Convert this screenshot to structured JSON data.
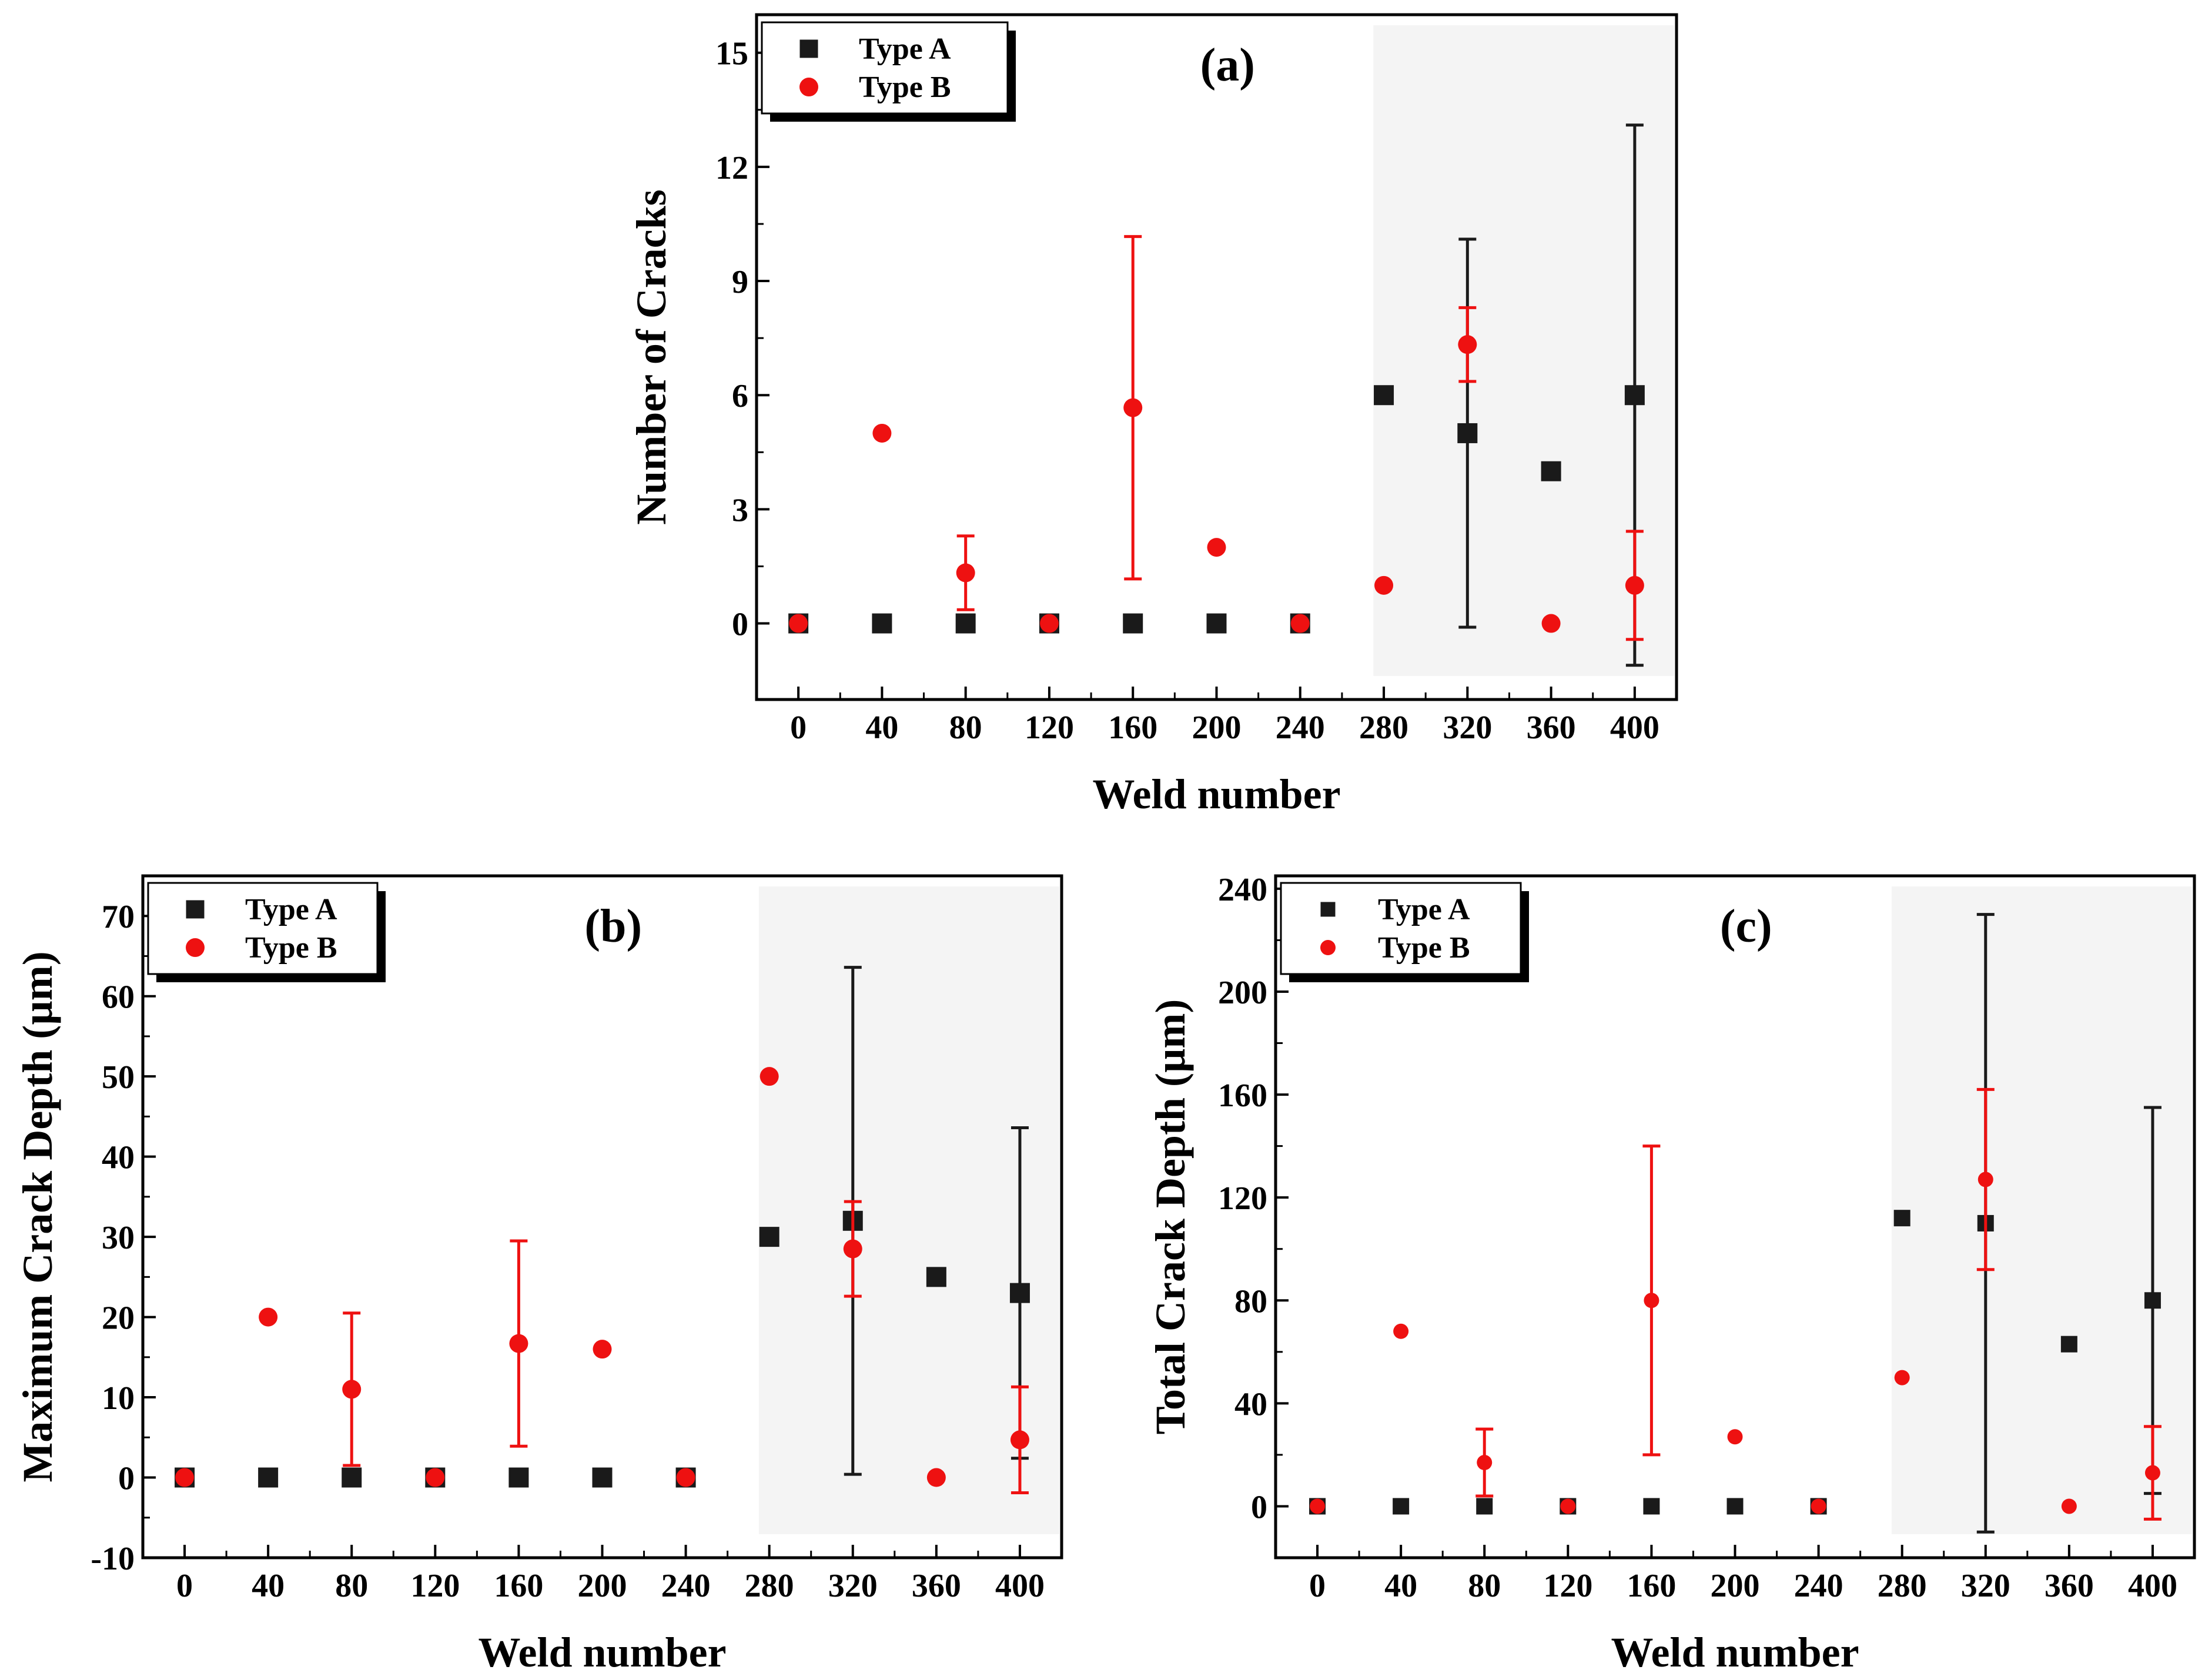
{
  "chart_data": [
    {
      "type": "scatter",
      "panel_label": "(a)",
      "xlabel": "Weld number",
      "ylabel": "Number of Cracks",
      "x_ticks": [
        0,
        40,
        80,
        120,
        160,
        200,
        240,
        280,
        320,
        360,
        400
      ],
      "y_ticks": [
        0,
        3,
        6,
        9,
        12,
        15
      ],
      "xlim": [
        -20,
        420
      ],
      "ylim": [
        -2,
        16
      ],
      "shaded_x_range": [
        275,
        420
      ],
      "legend": {
        "position": "top-left",
        "entries": [
          "Type A",
          "Type B"
        ]
      },
      "series": [
        {
          "name": "Type A",
          "marker": "square",
          "color": "#1a1a1a",
          "x": [
            0,
            40,
            80,
            120,
            160,
            200,
            240,
            280,
            320,
            360,
            400
          ],
          "y": [
            0,
            0,
            0,
            0,
            0,
            0,
            0,
            6,
            5,
            4,
            6
          ],
          "err": [
            0,
            0,
            0,
            0,
            0,
            0,
            0,
            0,
            5.1,
            0,
            7.1
          ]
        },
        {
          "name": "Type B",
          "marker": "circle",
          "color": "#ee1111",
          "x": [
            0,
            40,
            80,
            120,
            160,
            200,
            240,
            280,
            320,
            360,
            400
          ],
          "y": [
            0,
            5,
            1.33,
            0,
            5.67,
            2,
            0,
            1,
            7.33,
            0,
            1
          ],
          "err": [
            0,
            0,
            0.97,
            0,
            4.5,
            0,
            0,
            0,
            0.97,
            0,
            1.42
          ]
        }
      ]
    },
    {
      "type": "scatter",
      "panel_label": "(b)",
      "xlabel": "Weld number",
      "ylabel": "Maximum Crack Depth (µm)",
      "x_ticks": [
        0,
        40,
        80,
        120,
        160,
        200,
        240,
        280,
        320,
        360,
        400
      ],
      "y_ticks": [
        -10,
        0,
        10,
        20,
        30,
        40,
        50,
        60,
        70
      ],
      "xlim": [
        -20,
        420
      ],
      "ylim": [
        -10,
        75
      ],
      "shaded_x_range": [
        275,
        420
      ],
      "legend": {
        "position": "top-left",
        "entries": [
          "Type A",
          "Type B"
        ]
      },
      "series": [
        {
          "name": "Type A",
          "marker": "square",
          "color": "#1a1a1a",
          "x": [
            0,
            40,
            80,
            120,
            160,
            200,
            240,
            280,
            320,
            360,
            400
          ],
          "y": [
            0,
            0,
            0,
            0,
            0,
            0,
            0,
            30,
            32,
            25,
            23
          ],
          "err": [
            0,
            0,
            0,
            0,
            0,
            0,
            0,
            0,
            31.6,
            0,
            20.6
          ]
        },
        {
          "name": "Type B",
          "marker": "circle",
          "color": "#ee1111",
          "x": [
            0,
            40,
            80,
            120,
            160,
            200,
            240,
            280,
            320,
            360,
            400
          ],
          "y": [
            0,
            20,
            11,
            0,
            16.7,
            16,
            0,
            50,
            28.5,
            0,
            4.7
          ],
          "err": [
            0,
            0,
            9.5,
            0,
            12.8,
            0,
            0,
            0,
            5.9,
            0,
            6.6
          ]
        }
      ]
    },
    {
      "type": "scatter",
      "panel_label": "(c)",
      "xlabel": "Weld number",
      "ylabel": "Total Crack Depth (µm)",
      "x_ticks": [
        0,
        40,
        80,
        120,
        160,
        200,
        240,
        280,
        320,
        360,
        400
      ],
      "y_ticks": [
        0,
        40,
        80,
        120,
        160,
        200,
        240
      ],
      "xlim": [
        -20,
        420
      ],
      "ylim": [
        -20,
        245
      ],
      "shaded_x_range": [
        275,
        420
      ],
      "legend": {
        "position": "top-left",
        "entries": [
          "Type A",
          "Type B"
        ]
      },
      "series": [
        {
          "name": "Type A",
          "marker": "square",
          "color": "#1a1a1a",
          "x": [
            0,
            40,
            80,
            120,
            160,
            200,
            240,
            280,
            320,
            360,
            400
          ],
          "y": [
            0,
            0,
            0,
            0,
            0,
            0,
            0,
            112,
            110,
            63,
            80
          ],
          "err": [
            0,
            0,
            0,
            0,
            0,
            0,
            0,
            0,
            120,
            0,
            75
          ]
        },
        {
          "name": "Type B",
          "marker": "circle",
          "color": "#ee1111",
          "x": [
            0,
            40,
            80,
            120,
            160,
            200,
            240,
            280,
            320,
            360,
            400
          ],
          "y": [
            0,
            68,
            17,
            0,
            80,
            27,
            0,
            50,
            127,
            0,
            13
          ],
          "err": [
            0,
            0,
            13,
            0,
            60,
            0,
            0,
            0,
            35,
            0,
            18
          ]
        }
      ]
    }
  ]
}
